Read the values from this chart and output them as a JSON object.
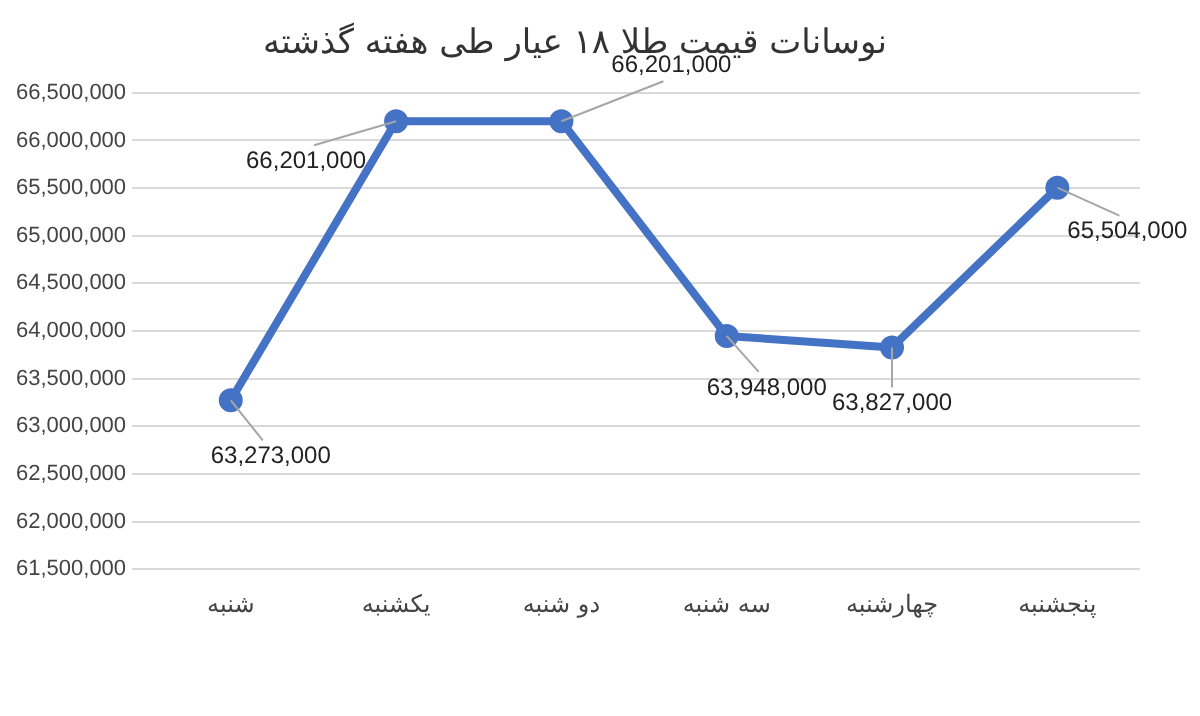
{
  "chart_data": {
    "type": "line",
    "title": "نوسانات قیمت طلا ۱۸ عیار طی هفته گذشته",
    "categories": [
      "شنبه",
      "یکشنبه",
      "دو شنبه",
      "سه شنبه",
      "چهارشنبه",
      "پنجشنبه"
    ],
    "series": [
      {
        "color": "#4472c4",
        "values": [
          63273000,
          66201000,
          66201000,
          63948000,
          63827000,
          65504000
        ],
        "value_labels": [
          "63,273,000",
          "66,201,000",
          "66,201,000",
          "63,948,000",
          "63,827,000",
          "65,504,000"
        ]
      }
    ],
    "ylim": [
      61500000,
      66500000
    ],
    "yticks": [
      {
        "value": 61500000,
        "label": "61,500,000"
      },
      {
        "value": 62000000,
        "label": "62,000,000"
      },
      {
        "value": 62500000,
        "label": "62,500,000"
      },
      {
        "value": 63000000,
        "label": "63,000,000"
      },
      {
        "value": 63500000,
        "label": "63,500,000"
      },
      {
        "value": 64000000,
        "label": "64,000,000"
      },
      {
        "value": 64500000,
        "label": "64,500,000"
      },
      {
        "value": 65000000,
        "label": "65,000,000"
      },
      {
        "value": 65500000,
        "label": "65,500,000"
      },
      {
        "value": 66000000,
        "label": "66,000,000"
      },
      {
        "value": 66500000,
        "label": "66,500,000"
      }
    ],
    "grid": "y",
    "marker": "circle",
    "line_style": "solid",
    "legend": false
  }
}
